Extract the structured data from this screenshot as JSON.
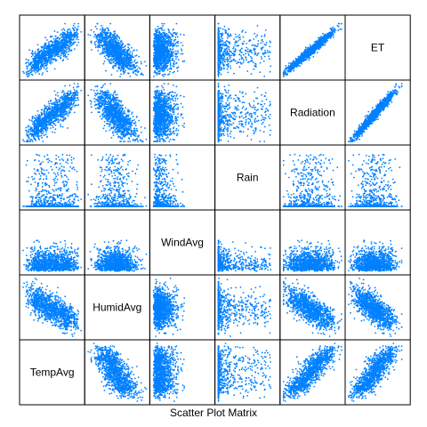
{
  "chart_data": {
    "type": "scatter",
    "title": "Scatter Plot Matrix",
    "variables": [
      "TempAvg",
      "HumidAvg",
      "WindAvg",
      "Rain",
      "Radiation",
      "ET"
    ],
    "point_color": "#0080FF",
    "grid": false,
    "correlation_pattern": {
      "TempAvg|HumidAvg": "negative",
      "TempAvg|Radiation": "positive",
      "TempAvg|ET": "positive",
      "HumidAvg|Radiation": "negative",
      "HumidAvg|ET": "negative",
      "Radiation|ET": "strong positive",
      "Rain|*": "right-skewed, mostly zero",
      "WindAvg|*": "right-skewed"
    }
  }
}
